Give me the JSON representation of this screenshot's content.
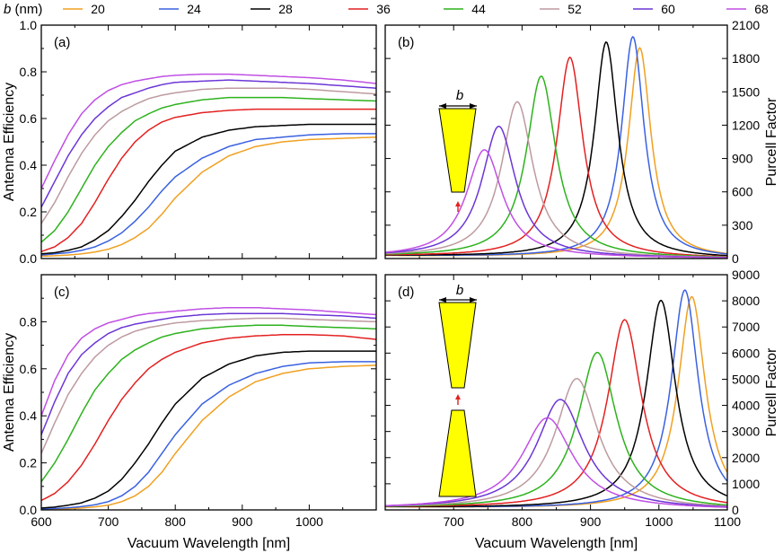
{
  "chart_data": {
    "type": "line",
    "legend": {
      "title_italic": "b",
      "title_unit": " (nm)",
      "placement": "top",
      "entries": [
        {
          "label": "20",
          "color": "#f0a021"
        },
        {
          "label": "24",
          "color": "#3a61e0"
        },
        {
          "label": "28",
          "color": "#000000"
        },
        {
          "label": "36",
          "color": "#e32020"
        },
        {
          "label": "44",
          "color": "#2db21d"
        },
        {
          "label": "52",
          "color": "#bd9a9f"
        },
        {
          "label": "60",
          "color": "#6b36d6"
        },
        {
          "label": "68",
          "color": "#c04fe4"
        }
      ]
    },
    "panels": [
      {
        "id": "a",
        "label": "(a)",
        "quantity": "efficiency",
        "ylabel": "Antenna Efficiency",
        "xlim": [
          600,
          1100
        ],
        "ylim": [
          0,
          1
        ],
        "yticks": [
          "0.0",
          "0.2",
          "0.4",
          "0.6",
          "0.8",
          "1.0"
        ],
        "x": [
          600,
          620,
          640,
          660,
          680,
          700,
          720,
          740,
          760,
          780,
          800,
          840,
          880,
          920,
          960,
          1000,
          1050,
          1100
        ],
        "series": [
          {
            "name": "20",
            "values": [
              0.01,
              0.012,
              0.015,
              0.02,
              0.028,
              0.04,
              0.06,
              0.09,
              0.13,
              0.19,
              0.26,
              0.37,
              0.44,
              0.48,
              0.5,
              0.51,
              0.515,
              0.52
            ]
          },
          {
            "name": "24",
            "values": [
              0.015,
              0.02,
              0.025,
              0.035,
              0.05,
              0.075,
              0.11,
              0.16,
              0.22,
              0.29,
              0.35,
              0.43,
              0.48,
              0.51,
              0.52,
              0.53,
              0.535,
              0.535
            ]
          },
          {
            "name": "28",
            "values": [
              0.02,
              0.025,
              0.035,
              0.05,
              0.08,
              0.12,
              0.18,
              0.25,
              0.33,
              0.4,
              0.46,
              0.52,
              0.55,
              0.565,
              0.57,
              0.575,
              0.575,
              0.575
            ]
          },
          {
            "name": "36",
            "values": [
              0.03,
              0.05,
              0.09,
              0.15,
              0.24,
              0.34,
              0.43,
              0.5,
              0.55,
              0.585,
              0.605,
              0.625,
              0.635,
              0.64,
              0.64,
              0.64,
              0.64,
              0.64
            ]
          },
          {
            "name": "44",
            "values": [
              0.07,
              0.12,
              0.2,
              0.3,
              0.4,
              0.48,
              0.54,
              0.59,
              0.62,
              0.645,
              0.66,
              0.68,
              0.69,
              0.69,
              0.69,
              0.685,
              0.68,
              0.675
            ]
          },
          {
            "name": "52",
            "values": [
              0.15,
              0.24,
              0.35,
              0.45,
              0.53,
              0.59,
              0.63,
              0.66,
              0.685,
              0.7,
              0.71,
              0.725,
              0.73,
              0.73,
              0.73,
              0.725,
              0.715,
              0.705
            ]
          },
          {
            "name": "60",
            "values": [
              0.22,
              0.33,
              0.44,
              0.53,
              0.6,
              0.65,
              0.69,
              0.71,
              0.73,
              0.745,
              0.755,
              0.76,
              0.765,
              0.76,
              0.755,
              0.75,
              0.74,
              0.73
            ]
          },
          {
            "name": "68",
            "values": [
              0.3,
              0.42,
              0.53,
              0.62,
              0.68,
              0.72,
              0.745,
              0.76,
              0.77,
              0.78,
              0.785,
              0.79,
              0.79,
              0.785,
              0.78,
              0.775,
              0.765,
              0.75
            ]
          }
        ]
      },
      {
        "id": "b",
        "label": "(b)",
        "quantity": "purcell",
        "ylabel": "Purcell Factor",
        "xlim": [
          600,
          1100
        ],
        "ylim": [
          0,
          2100
        ],
        "yticks": [
          "0",
          "300",
          "600",
          "900",
          "1200",
          "1500",
          "1800",
          "2100"
        ],
        "series": [
          {
            "name": "20",
            "peak_x": 972,
            "peak_y": 1890,
            "width": 20
          },
          {
            "name": "24",
            "peak_x": 962,
            "peak_y": 1990,
            "width": 20
          },
          {
            "name": "28",
            "peak_x": 923,
            "peak_y": 1940,
            "width": 21
          },
          {
            "name": "36",
            "peak_x": 870,
            "peak_y": 1800,
            "width": 23
          },
          {
            "name": "44",
            "peak_x": 828,
            "peak_y": 1630,
            "width": 26
          },
          {
            "name": "52",
            "peak_x": 793,
            "peak_y": 1400,
            "width": 28
          },
          {
            "name": "60",
            "peak_x": 766,
            "peak_y": 1180,
            "width": 30
          },
          {
            "name": "68",
            "peak_x": 745,
            "peak_y": 970,
            "width": 32
          }
        ]
      },
      {
        "id": "c",
        "label": "(c)",
        "quantity": "efficiency",
        "ylabel": "Antenna Efficiency",
        "xlim": [
          600,
          1100
        ],
        "ylim": [
          0,
          1
        ],
        "yticks": [
          "0.0",
          "0.2",
          "0.4",
          "0.6",
          "0.8"
        ],
        "xticks": [
          "600",
          "700",
          "800",
          "900",
          "1000"
        ],
        "xlabel": "Vacuum Wavelength [nm]",
        "x": [
          600,
          620,
          640,
          660,
          680,
          700,
          720,
          740,
          760,
          780,
          800,
          840,
          880,
          920,
          960,
          1000,
          1050,
          1100
        ],
        "series": [
          {
            "name": "20",
            "values": [
              0.002,
              0.003,
              0.005,
              0.008,
              0.013,
              0.02,
              0.035,
              0.06,
              0.1,
              0.16,
              0.24,
              0.38,
              0.48,
              0.545,
              0.58,
              0.6,
              0.61,
              0.615
            ]
          },
          {
            "name": "24",
            "values": [
              0.004,
              0.006,
              0.009,
              0.014,
              0.022,
              0.035,
              0.06,
              0.1,
              0.16,
              0.24,
              0.32,
              0.45,
              0.53,
              0.58,
              0.61,
              0.625,
              0.63,
              0.63
            ]
          },
          {
            "name": "28",
            "values": [
              0.008,
              0.012,
              0.02,
              0.03,
              0.05,
              0.08,
              0.13,
              0.2,
              0.28,
              0.37,
              0.45,
              0.56,
              0.62,
              0.655,
              0.67,
              0.675,
              0.675,
              0.675
            ]
          },
          {
            "name": "36",
            "values": [
              0.04,
              0.07,
              0.12,
              0.19,
              0.28,
              0.38,
              0.47,
              0.54,
              0.6,
              0.64,
              0.67,
              0.71,
              0.73,
              0.74,
              0.745,
              0.745,
              0.74,
              0.725
            ]
          },
          {
            "name": "44",
            "values": [
              0.12,
              0.2,
              0.3,
              0.41,
              0.51,
              0.58,
              0.64,
              0.68,
              0.71,
              0.735,
              0.75,
              0.77,
              0.78,
              0.785,
              0.785,
              0.78,
              0.775,
              0.77
            ]
          },
          {
            "name": "52",
            "values": [
              0.24,
              0.37,
              0.49,
              0.58,
              0.65,
              0.7,
              0.735,
              0.76,
              0.775,
              0.785,
              0.795,
              0.805,
              0.81,
              0.815,
              0.815,
              0.81,
              0.805,
              0.8
            ]
          },
          {
            "name": "60",
            "values": [
              0.32,
              0.46,
              0.58,
              0.66,
              0.71,
              0.75,
              0.775,
              0.79,
              0.8,
              0.81,
              0.82,
              0.83,
              0.835,
              0.835,
              0.835,
              0.83,
              0.825,
              0.815
            ]
          },
          {
            "name": "68",
            "values": [
              0.4,
              0.55,
              0.66,
              0.73,
              0.77,
              0.795,
              0.81,
              0.825,
              0.835,
              0.84,
              0.845,
              0.855,
              0.86,
              0.86,
              0.855,
              0.85,
              0.84,
              0.83
            ]
          }
        ]
      },
      {
        "id": "d",
        "label": "(d)",
        "quantity": "purcell",
        "ylabel": "Purcell Factor",
        "xlim": [
          600,
          1100
        ],
        "ylim": [
          0,
          9000
        ],
        "yticks": [
          "0",
          "1000",
          "2000",
          "3000",
          "4000",
          "5000",
          "6000",
          "7000",
          "8000",
          "9000"
        ],
        "xticks": [
          "700",
          "800",
          "900",
          "1000",
          "1100"
        ],
        "xlabel": "Vacuum Wavelength [nm]",
        "series": [
          {
            "name": "20",
            "peak_x": 1048,
            "peak_y": 8150,
            "width": 24
          },
          {
            "name": "24",
            "peak_x": 1038,
            "peak_y": 8400,
            "width": 24
          },
          {
            "name": "28",
            "peak_x": 1003,
            "peak_y": 8000,
            "width": 26
          },
          {
            "name": "36",
            "peak_x": 950,
            "peak_y": 7250,
            "width": 30
          },
          {
            "name": "44",
            "peak_x": 910,
            "peak_y": 6000,
            "width": 34
          },
          {
            "name": "52",
            "peak_x": 880,
            "peak_y": 5000,
            "width": 38
          },
          {
            "name": "60",
            "peak_x": 856,
            "peak_y": 4200,
            "width": 42
          },
          {
            "name": "68",
            "peak_x": 837,
            "peak_y": 3500,
            "width": 45
          }
        ]
      }
    ],
    "insets": [
      {
        "panel": "b",
        "label": "b"
      },
      {
        "panel": "d",
        "label": "b"
      }
    ]
  }
}
